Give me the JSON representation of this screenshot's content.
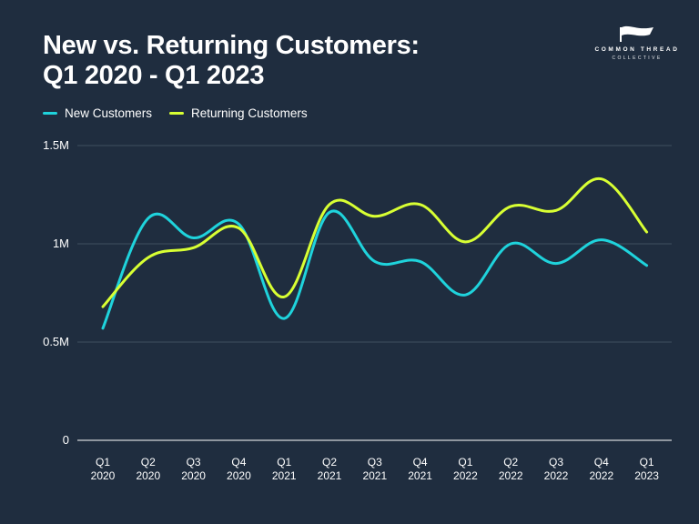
{
  "title_lines": [
    "New vs. Returning Customers:",
    "Q1 2020 - Q1 2023"
  ],
  "logo": {
    "brand": "COMMON THREAD",
    "sub": "COLLECTIVE"
  },
  "colors": {
    "background": "#1f2d3f",
    "new": "#1fd3dc",
    "returning": "#d8ff33",
    "grid": "#4b5a6b",
    "text": "#ffffff"
  },
  "chart_data": {
    "type": "line",
    "title": "New vs. Returning Customers: Q1 2020 - Q1 2023",
    "xlabel": "",
    "ylabel": "",
    "ylim": [
      0,
      1500000
    ],
    "yticks": [
      {
        "value": 0,
        "label": "0"
      },
      {
        "value": 500000,
        "label": "0.5M"
      },
      {
        "value": 1000000,
        "label": "1M"
      },
      {
        "value": 1500000,
        "label": "1.5M"
      }
    ],
    "categories": [
      [
        "Q1",
        "2020"
      ],
      [
        "Q2",
        "2020"
      ],
      [
        "Q3",
        "2020"
      ],
      [
        "Q4",
        "2020"
      ],
      [
        "Q1",
        "2021"
      ],
      [
        "Q2",
        "2021"
      ],
      [
        "Q3",
        "2021"
      ],
      [
        "Q4",
        "2021"
      ],
      [
        "Q1",
        "2022"
      ],
      [
        "Q2",
        "2022"
      ],
      [
        "Q3",
        "2022"
      ],
      [
        "Q4",
        "2022"
      ],
      [
        "Q1",
        "2023"
      ]
    ],
    "grid": true,
    "legend": "top-left",
    "series": [
      {
        "name": "New Customers",
        "color": "#1fd3dc",
        "values": [
          570000,
          1130000,
          1030000,
          1100000,
          620000,
          1160000,
          910000,
          910000,
          740000,
          1000000,
          900000,
          1020000,
          890000
        ]
      },
      {
        "name": "Returning Customers",
        "color": "#d8ff33",
        "values": [
          680000,
          930000,
          980000,
          1080000,
          730000,
          1200000,
          1140000,
          1200000,
          1010000,
          1190000,
          1170000,
          1330000,
          1060000
        ]
      }
    ]
  }
}
